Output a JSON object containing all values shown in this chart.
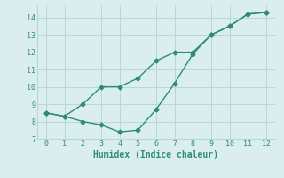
{
  "line1_x": [
    0,
    1,
    2,
    3,
    4,
    5,
    6,
    7,
    8,
    9,
    10,
    11,
    12
  ],
  "line1_y": [
    8.5,
    8.3,
    9.0,
    10.0,
    10.0,
    10.5,
    11.5,
    12.0,
    12.0,
    13.0,
    13.5,
    14.2,
    14.3
  ],
  "line2_x": [
    0,
    1,
    2,
    3,
    4,
    5,
    6,
    7,
    8,
    9,
    10,
    11,
    12
  ],
  "line2_y": [
    8.5,
    8.3,
    8.0,
    7.8,
    7.4,
    7.5,
    8.7,
    10.2,
    11.9,
    13.0,
    13.5,
    14.2,
    14.3
  ],
  "color": "#2e8b7a",
  "xlabel": "Humidex (Indice chaleur)",
  "xlim": [
    -0.5,
    12.5
  ],
  "ylim": [
    7.0,
    14.7
  ],
  "yticks": [
    7,
    8,
    9,
    10,
    11,
    12,
    13,
    14
  ],
  "xticks": [
    0,
    1,
    2,
    3,
    4,
    5,
    6,
    7,
    8,
    9,
    10,
    11,
    12
  ],
  "bg_color": "#daeeed",
  "grid_color": "#b8d8d4"
}
